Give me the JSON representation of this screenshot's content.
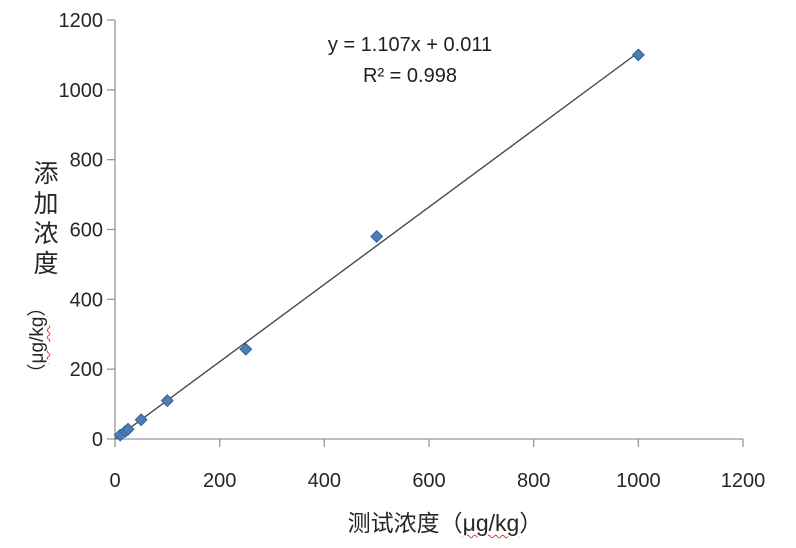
{
  "chart_data": {
    "type": "scatter",
    "title": "",
    "points": [
      {
        "x": 10,
        "y": 11
      },
      {
        "x": 20,
        "y": 22
      },
      {
        "x": 25,
        "y": 28
      },
      {
        "x": 50,
        "y": 55
      },
      {
        "x": 100,
        "y": 110
      },
      {
        "x": 250,
        "y": 257
      },
      {
        "x": 500,
        "y": 580
      },
      {
        "x": 1000,
        "y": 1100
      }
    ],
    "trendline": {
      "slope": 1.107,
      "intercept": 0.011,
      "x_range": [
        0,
        1000
      ]
    },
    "equation_line1": "y = 1.107x + 0.011",
    "equation_line2": "R² = 0.998",
    "x_axis": {
      "lim": [
        0,
        1200
      ],
      "ticks": [
        0,
        200,
        400,
        600,
        800,
        1000,
        1200
      ],
      "label_cn": "测试浓度",
      "unit": "μg/kg"
    },
    "y_axis": {
      "lim": [
        0,
        1200
      ],
      "ticks": [
        0,
        200,
        400,
        600,
        800,
        1000,
        1200
      ],
      "label_cn": "添加浓度",
      "unit": "μg/kg"
    },
    "legend": "none",
    "grid": "off",
    "colors": {
      "marker_fill": "#4A7EBB",
      "marker_stroke": "#36618E",
      "trendline": "#4A4A4A",
      "axis": "#969696",
      "text": "#262626",
      "squiggle": "#E8392B"
    }
  },
  "labels": {
    "x_title_prefix": "测试浓度（",
    "x_title_unit": "μg/kg",
    "x_title_suffix": "）",
    "y_title_cn": "添加浓度",
    "y_unit_open": "（",
    "y_unit": "μg/kg",
    "y_unit_close": "）"
  }
}
